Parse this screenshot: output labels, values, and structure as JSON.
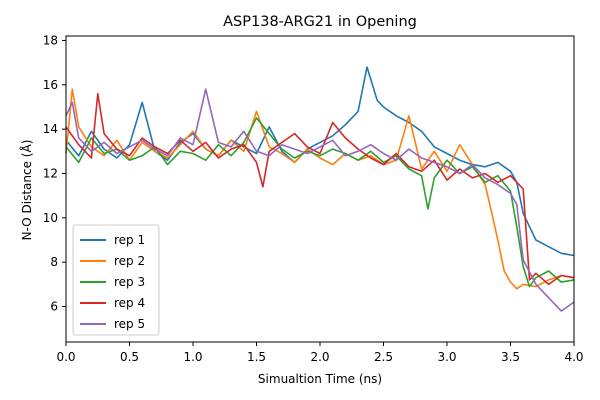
{
  "chart_data": {
    "type": "line",
    "title": "ASP138-ARG21 in Opening",
    "xlabel": "Simualtion Time (ns)",
    "ylabel": "N-O Distance (Å)",
    "xlim": [
      0.0,
      4.0
    ],
    "ylim": [
      4.4,
      18.2
    ],
    "xticks": [
      0.0,
      0.5,
      1.0,
      1.5,
      2.0,
      2.5,
      3.0,
      3.5,
      4.0
    ],
    "xtick_labels": [
      "0.0",
      "0.5",
      "1.0",
      "1.5",
      "2.0",
      "2.5",
      "3.0",
      "3.5",
      "4.0"
    ],
    "yticks": [
      6,
      8,
      10,
      12,
      14,
      16,
      18
    ],
    "ytick_labels": [
      "6",
      "8",
      "10",
      "12",
      "14",
      "16",
      "18"
    ],
    "grid": false,
    "legend_position": "lower-left",
    "series": [
      {
        "name": "rep 1",
        "color": "#1f77b4",
        "x": [
          0.0,
          0.1,
          0.2,
          0.3,
          0.4,
          0.5,
          0.6,
          0.7,
          0.8,
          0.9,
          1.0,
          1.1,
          1.2,
          1.3,
          1.4,
          1.5,
          1.6,
          1.7,
          1.8,
          1.9,
          2.0,
          2.1,
          2.2,
          2.3,
          2.37,
          2.45,
          2.5,
          2.6,
          2.7,
          2.8,
          2.9,
          3.0,
          3.1,
          3.2,
          3.3,
          3.4,
          3.5,
          3.55,
          3.6,
          3.65,
          3.7,
          3.8,
          3.9,
          4.0
        ],
        "y": [
          13.5,
          12.8,
          13.9,
          13.1,
          12.7,
          13.3,
          15.2,
          13.0,
          12.6,
          13.4,
          13.8,
          13.1,
          12.8,
          13.5,
          13.2,
          12.9,
          14.1,
          13.0,
          12.5,
          13.1,
          13.4,
          13.7,
          14.2,
          14.8,
          16.8,
          15.3,
          15.0,
          14.6,
          14.3,
          13.9,
          13.2,
          12.9,
          12.6,
          12.4,
          12.3,
          12.5,
          12.1,
          11.6,
          10.2,
          9.6,
          9.0,
          8.7,
          8.4,
          8.3
        ]
      },
      {
        "name": "rep 2",
        "color": "#ff7f0e",
        "x": [
          0.0,
          0.05,
          0.1,
          0.2,
          0.3,
          0.4,
          0.5,
          0.6,
          0.7,
          0.8,
          0.9,
          1.0,
          1.1,
          1.2,
          1.3,
          1.4,
          1.5,
          1.6,
          1.7,
          1.8,
          1.9,
          2.0,
          2.1,
          2.2,
          2.3,
          2.4,
          2.5,
          2.6,
          2.7,
          2.8,
          2.9,
          3.0,
          3.1,
          3.2,
          3.3,
          3.35,
          3.4,
          3.45,
          3.5,
          3.55,
          3.6,
          3.7,
          3.8,
          3.9,
          4.0
        ],
        "y": [
          12.9,
          15.8,
          14.1,
          13.2,
          12.8,
          13.5,
          12.6,
          13.4,
          13.0,
          12.7,
          13.3,
          13.9,
          13.1,
          12.8,
          13.5,
          13.0,
          14.8,
          13.2,
          12.9,
          12.5,
          13.1,
          12.7,
          12.4,
          12.9,
          12.6,
          12.8,
          12.4,
          12.6,
          14.6,
          12.2,
          13.0,
          12.1,
          13.3,
          12.4,
          11.5,
          10.3,
          9.0,
          7.6,
          7.1,
          6.8,
          7.0,
          6.9,
          7.2,
          7.4,
          7.3
        ]
      },
      {
        "name": "rep 3",
        "color": "#2ca02c",
        "x": [
          0.0,
          0.1,
          0.2,
          0.3,
          0.4,
          0.5,
          0.6,
          0.7,
          0.8,
          0.9,
          1.0,
          1.1,
          1.2,
          1.3,
          1.4,
          1.5,
          1.6,
          1.7,
          1.8,
          1.9,
          2.0,
          2.1,
          2.2,
          2.3,
          2.4,
          2.5,
          2.6,
          2.7,
          2.8,
          2.85,
          2.9,
          3.0,
          3.1,
          3.2,
          3.3,
          3.4,
          3.5,
          3.55,
          3.6,
          3.65,
          3.7,
          3.8,
          3.9,
          4.0
        ],
        "y": [
          13.2,
          12.5,
          13.6,
          12.9,
          13.1,
          12.6,
          12.8,
          13.2,
          12.4,
          13.0,
          12.9,
          12.6,
          13.3,
          12.8,
          13.4,
          14.5,
          13.8,
          13.1,
          12.7,
          13.0,
          12.8,
          13.1,
          12.9,
          12.6,
          13.0,
          12.5,
          12.8,
          12.2,
          11.9,
          10.4,
          11.8,
          12.6,
          12.0,
          12.3,
          11.6,
          11.9,
          11.2,
          9.6,
          7.8,
          6.9,
          7.3,
          7.6,
          7.1,
          7.2
        ]
      },
      {
        "name": "rep 4",
        "color": "#d62728",
        "x": [
          0.0,
          0.1,
          0.2,
          0.25,
          0.3,
          0.4,
          0.5,
          0.6,
          0.7,
          0.8,
          0.9,
          1.0,
          1.1,
          1.2,
          1.3,
          1.4,
          1.5,
          1.55,
          1.6,
          1.7,
          1.8,
          1.9,
          2.0,
          2.1,
          2.2,
          2.3,
          2.4,
          2.5,
          2.6,
          2.7,
          2.8,
          2.9,
          3.0,
          3.1,
          3.2,
          3.3,
          3.4,
          3.5,
          3.6,
          3.65,
          3.7,
          3.8,
          3.9,
          4.0
        ],
        "y": [
          14.1,
          13.3,
          12.7,
          15.6,
          13.8,
          13.1,
          12.8,
          13.6,
          13.2,
          12.9,
          13.5,
          13.0,
          13.4,
          12.7,
          13.1,
          13.3,
          12.5,
          11.4,
          13.0,
          13.4,
          13.8,
          13.2,
          12.9,
          14.3,
          13.6,
          13.1,
          12.7,
          12.4,
          12.9,
          12.3,
          12.1,
          12.6,
          11.7,
          12.2,
          11.8,
          12.0,
          11.6,
          11.9,
          11.3,
          7.2,
          7.5,
          7.0,
          7.4,
          7.3
        ]
      },
      {
        "name": "rep 5",
        "color": "#9467bd",
        "x": [
          0.0,
          0.05,
          0.1,
          0.2,
          0.3,
          0.4,
          0.5,
          0.6,
          0.7,
          0.8,
          0.9,
          1.0,
          1.1,
          1.2,
          1.3,
          1.4,
          1.5,
          1.6,
          1.7,
          1.8,
          1.9,
          2.0,
          2.1,
          2.2,
          2.3,
          2.4,
          2.5,
          2.6,
          2.7,
          2.8,
          2.9,
          3.0,
          3.1,
          3.2,
          3.3,
          3.4,
          3.5,
          3.55,
          3.6,
          3.7,
          3.8,
          3.9,
          4.0
        ],
        "y": [
          14.6,
          15.2,
          13.6,
          13.0,
          13.4,
          12.9,
          13.2,
          13.5,
          13.1,
          12.8,
          13.6,
          13.3,
          15.8,
          13.4,
          13.2,
          13.9,
          13.0,
          12.8,
          13.3,
          13.1,
          12.9,
          13.2,
          13.5,
          12.8,
          13.0,
          13.3,
          12.9,
          12.6,
          13.1,
          12.7,
          12.5,
          12.3,
          12.0,
          12.4,
          11.8,
          11.5,
          11.1,
          10.6,
          8.1,
          7.0,
          6.4,
          5.8,
          6.2
        ]
      }
    ]
  }
}
